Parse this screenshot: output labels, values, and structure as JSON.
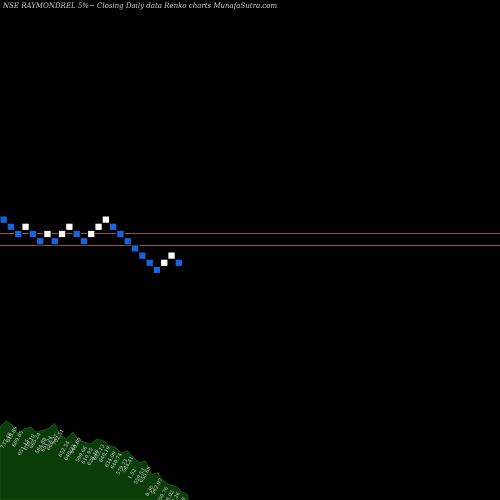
{
  "chart_data": {
    "type": "renko",
    "title": "NSE RAYMONDREL  5%~  Closing Daily data  Renko  charts MunafaSutra.com",
    "colors": {
      "background": "#000000",
      "up_brick": "#ffffff",
      "down_brick": "#1565e0",
      "brick_border": "#000000",
      "reference_line": "#c87a14",
      "volume_area": "#0b3d0b"
    },
    "bricks": [
      {
        "dir": "down",
        "level": 0
      },
      {
        "dir": "down",
        "level": -1
      },
      {
        "dir": "down",
        "level": -2
      },
      {
        "dir": "up",
        "level": -1
      },
      {
        "dir": "down",
        "level": -2
      },
      {
        "dir": "down",
        "level": -3
      },
      {
        "dir": "up",
        "level": -2
      },
      {
        "dir": "down",
        "level": -3
      },
      {
        "dir": "up",
        "level": -2
      },
      {
        "dir": "up",
        "level": -1
      },
      {
        "dir": "down",
        "level": -2
      },
      {
        "dir": "down",
        "level": -3
      },
      {
        "dir": "up",
        "level": -2
      },
      {
        "dir": "up",
        "level": -1
      },
      {
        "dir": "up",
        "level": 0
      },
      {
        "dir": "down",
        "level": -1
      },
      {
        "dir": "down",
        "level": -2
      },
      {
        "dir": "down",
        "level": -3
      },
      {
        "dir": "down",
        "level": -4
      },
      {
        "dir": "down",
        "level": -5
      },
      {
        "dir": "down",
        "level": -6
      },
      {
        "dir": "down",
        "level": -7
      },
      {
        "dir": "up",
        "level": -6
      },
      {
        "dir": "up",
        "level": -5
      },
      {
        "dir": "down",
        "level": -6
      }
    ],
    "reference_levels": [
      -1.5,
      -3.2
    ],
    "volume_labels": [
      "737.48",
      "645.89",
      "669.05",
      "651.15",
      "639.10",
      "665.24",
      "564.88",
      "651.24",
      "660.27",
      "702.51",
      "652.54",
      "640.23",
      "649.69",
      "599.66",
      "610.95",
      "628.46",
      "652.13",
      "640.19",
      "634.09",
      "640.74",
      "579.73",
      "584.41",
      "1.52",
      "559.53",
      "650.69",
      "0.36",
      "562.97",
      "559.76",
      "516.02",
      "497.26",
      "457.09",
      "453.00"
    ],
    "volume_values": [
      0.86,
      0.93,
      0.88,
      0.78,
      0.84,
      0.86,
      0.8,
      0.82,
      0.84,
      0.9,
      0.76,
      0.72,
      0.8,
      0.7,
      0.68,
      0.66,
      0.72,
      0.7,
      0.64,
      0.62,
      0.55,
      0.58,
      0.5,
      0.44,
      0.46,
      0.3,
      0.32,
      0.22,
      0.18,
      0.16,
      0.1,
      0.06
    ]
  }
}
